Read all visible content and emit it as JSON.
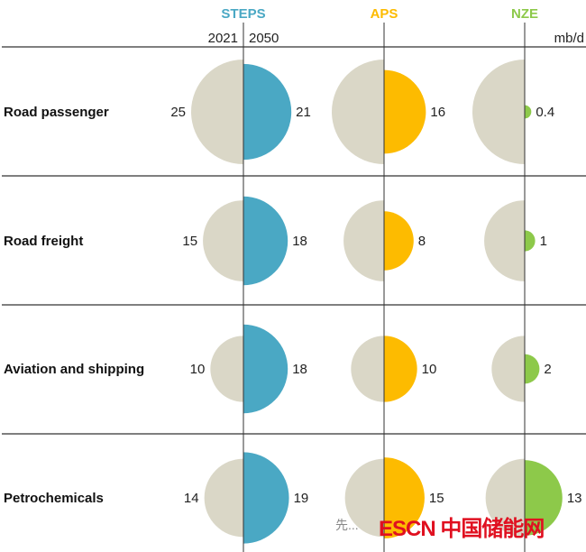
{
  "chart_data": {
    "type": "half-circle comparison",
    "unit": "mb/d",
    "base_year_label": "2021",
    "target_year_label": "2050",
    "scenarios": [
      {
        "name": "STEPS",
        "color": "#4aa8c4"
      },
      {
        "name": "APS",
        "color": "#fdbb00"
      },
      {
        "name": "NZE",
        "color": "#8dc94a"
      }
    ],
    "base_color": "#dad7c7",
    "rows": [
      {
        "label": "Road passenger",
        "base_2021": 25,
        "values_2050": [
          21,
          16,
          0.4
        ]
      },
      {
        "label": "Road freight",
        "base_2021": 15,
        "values_2050": [
          18,
          8,
          1
        ]
      },
      {
        "label": "Aviation and shipping",
        "base_2021": 10,
        "values_2050": [
          18,
          10,
          2
        ]
      },
      {
        "label": "Petrochemicals",
        "base_2021": 14,
        "values_2050": [
          19,
          15,
          13
        ]
      }
    ]
  },
  "watermark": {
    "text": "ESCN 中国储能网",
    "prefix": "先..."
  }
}
